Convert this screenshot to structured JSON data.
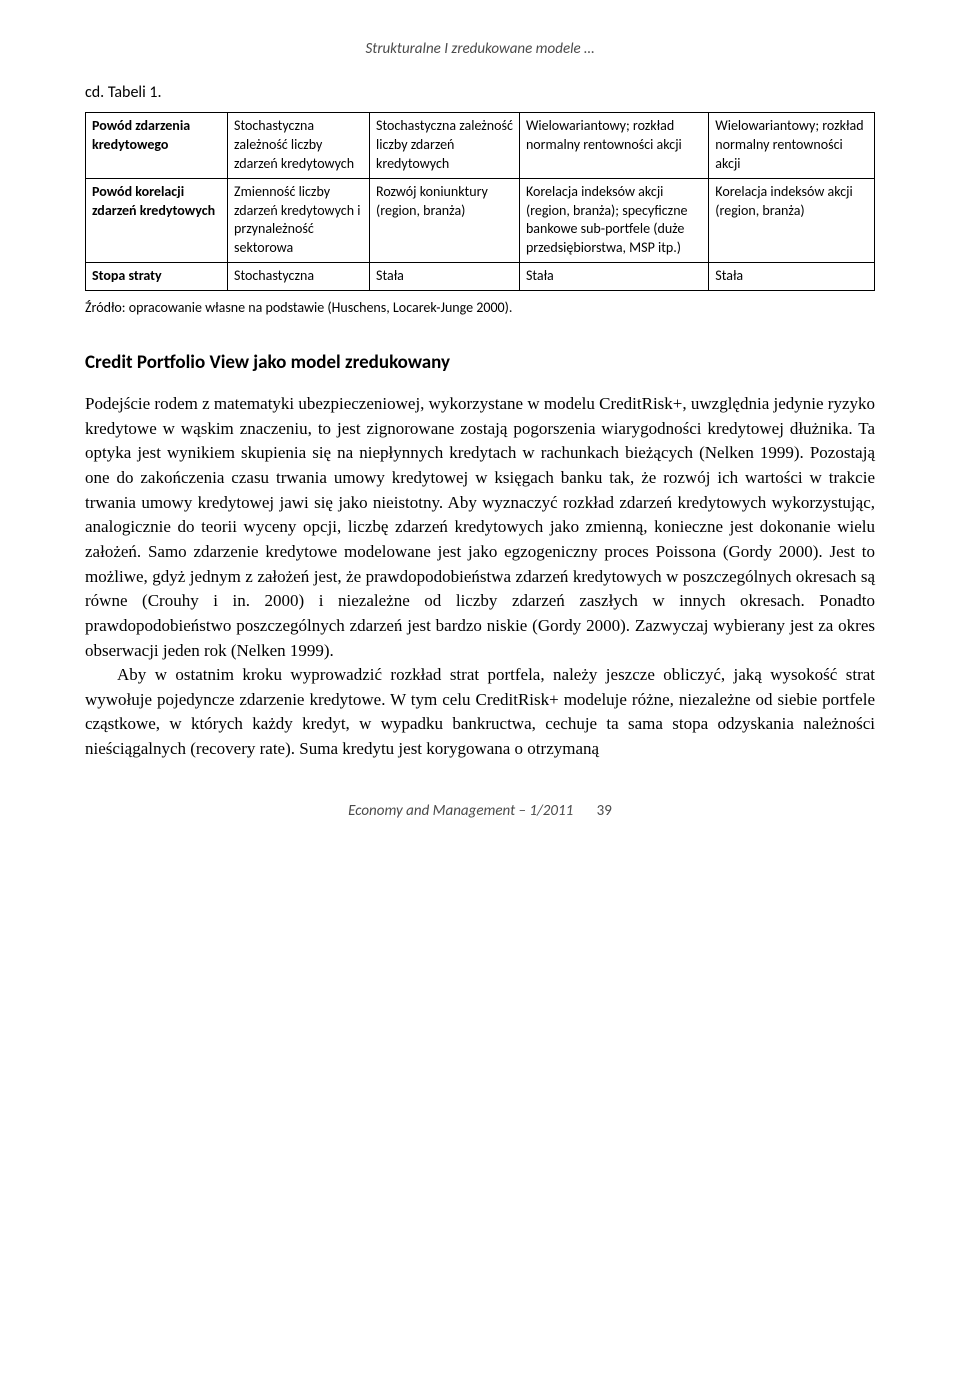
{
  "running_header": "Strukturalne I zredukowane modele …",
  "table_caption": "cd. Tabeli 1.",
  "table": {
    "rows": [
      {
        "head": "Powód zdarzenia kredytowego",
        "c1": "Stochastyczna zależność liczby zdarzeń kredytowych",
        "c2": "Stochastyczna zależność liczby zdarzeń kredytowych",
        "c3": "Wielowariantowy; rozkład normalny rentowności akcji",
        "c4": "Wielowariantowy; rozkład normalny rentowności akcji"
      },
      {
        "head": "Powód korelacji zdarzeń kredytowych",
        "c1": "Zmienność liczby zdarzeń kredytowych i przynależność sektorowa",
        "c2": "Rozwój koniunktury (region, branża)",
        "c3": "Korelacja indeksów akcji (region, branża); specyficzne bankowe sub-portfele (duże przedsiębiorstwa, MSP itp.)",
        "c4": "Korelacja indeksów akcji (region, branża)"
      },
      {
        "head": "Stopa straty",
        "c1": "Stochastyczna",
        "c2": "Stała",
        "c3": "Stała",
        "c4": "Stała"
      }
    ],
    "col_widths": [
      "18%",
      "18%",
      "19%",
      "24%",
      "21%"
    ]
  },
  "source_note": "Źródło: opracowanie własne na podstawie (Huschens, Locarek-Junge 2000).",
  "section_heading": "Credit Portfolio View jako model zredukowany",
  "paragraphs": [
    "Podejście rodem z matematyki ubezpieczeniowej, wykorzystane w modelu CreditRisk+, uwzględnia jedynie ryzyko kredytowe w wąskim znaczeniu, to jest zignorowane zostają pogorszenia wiarygodności kredytowej dłużnika. Ta optyka jest wynikiem skupienia się na niepłynnych kredytach w rachunkach bieżących (Nelken 1999). Pozostają one do zakończenia czasu trwania umowy kredytowej w księgach banku tak, że rozwój ich wartości w trakcie trwania umowy kredytowej jawi się jako nieistotny. Aby wyznaczyć rozkład zdarzeń kredytowych wykorzystując, analogicznie do teorii wyceny opcji, liczbę zdarzeń kredytowych jako zmienną, konieczne jest dokonanie wielu założeń. Samo zdarzenie kredytowe modelowane jest jako egzogeniczny proces Poissona (Gordy 2000). Jest to możliwe, gdyż jednym z założeń jest, że prawdopodobieństwa zdarzeń kredytowych w poszczególnych okresach są równe (Crouhy i in. 2000) i niezależne od liczby zdarzeń zaszłych w innych okresach. Ponadto prawdopodobieństwo poszczególnych zdarzeń jest bardzo niskie (Gordy 2000). Zazwyczaj wybierany jest za okres obserwacji jeden rok (Nelken 1999).",
    "Aby w ostatnim kroku wyprowadzić rozkład strat portfela, należy jeszcze obliczyć, jaką wysokość strat wywołuje pojedyncze zdarzenie kredytowe. W tym celu CreditRisk+ modeluje różne, niezależne od siebie portfele cząstkowe, w których każdy kredyt, w wypadku bankructwa, cechuje ta sama stopa odzyskania należności nieściągalnych (recovery rate). Suma kredytu jest korygowana o otrzymaną"
  ],
  "footer": {
    "journal": "Economy and Management – 1/2011",
    "page": "39"
  }
}
